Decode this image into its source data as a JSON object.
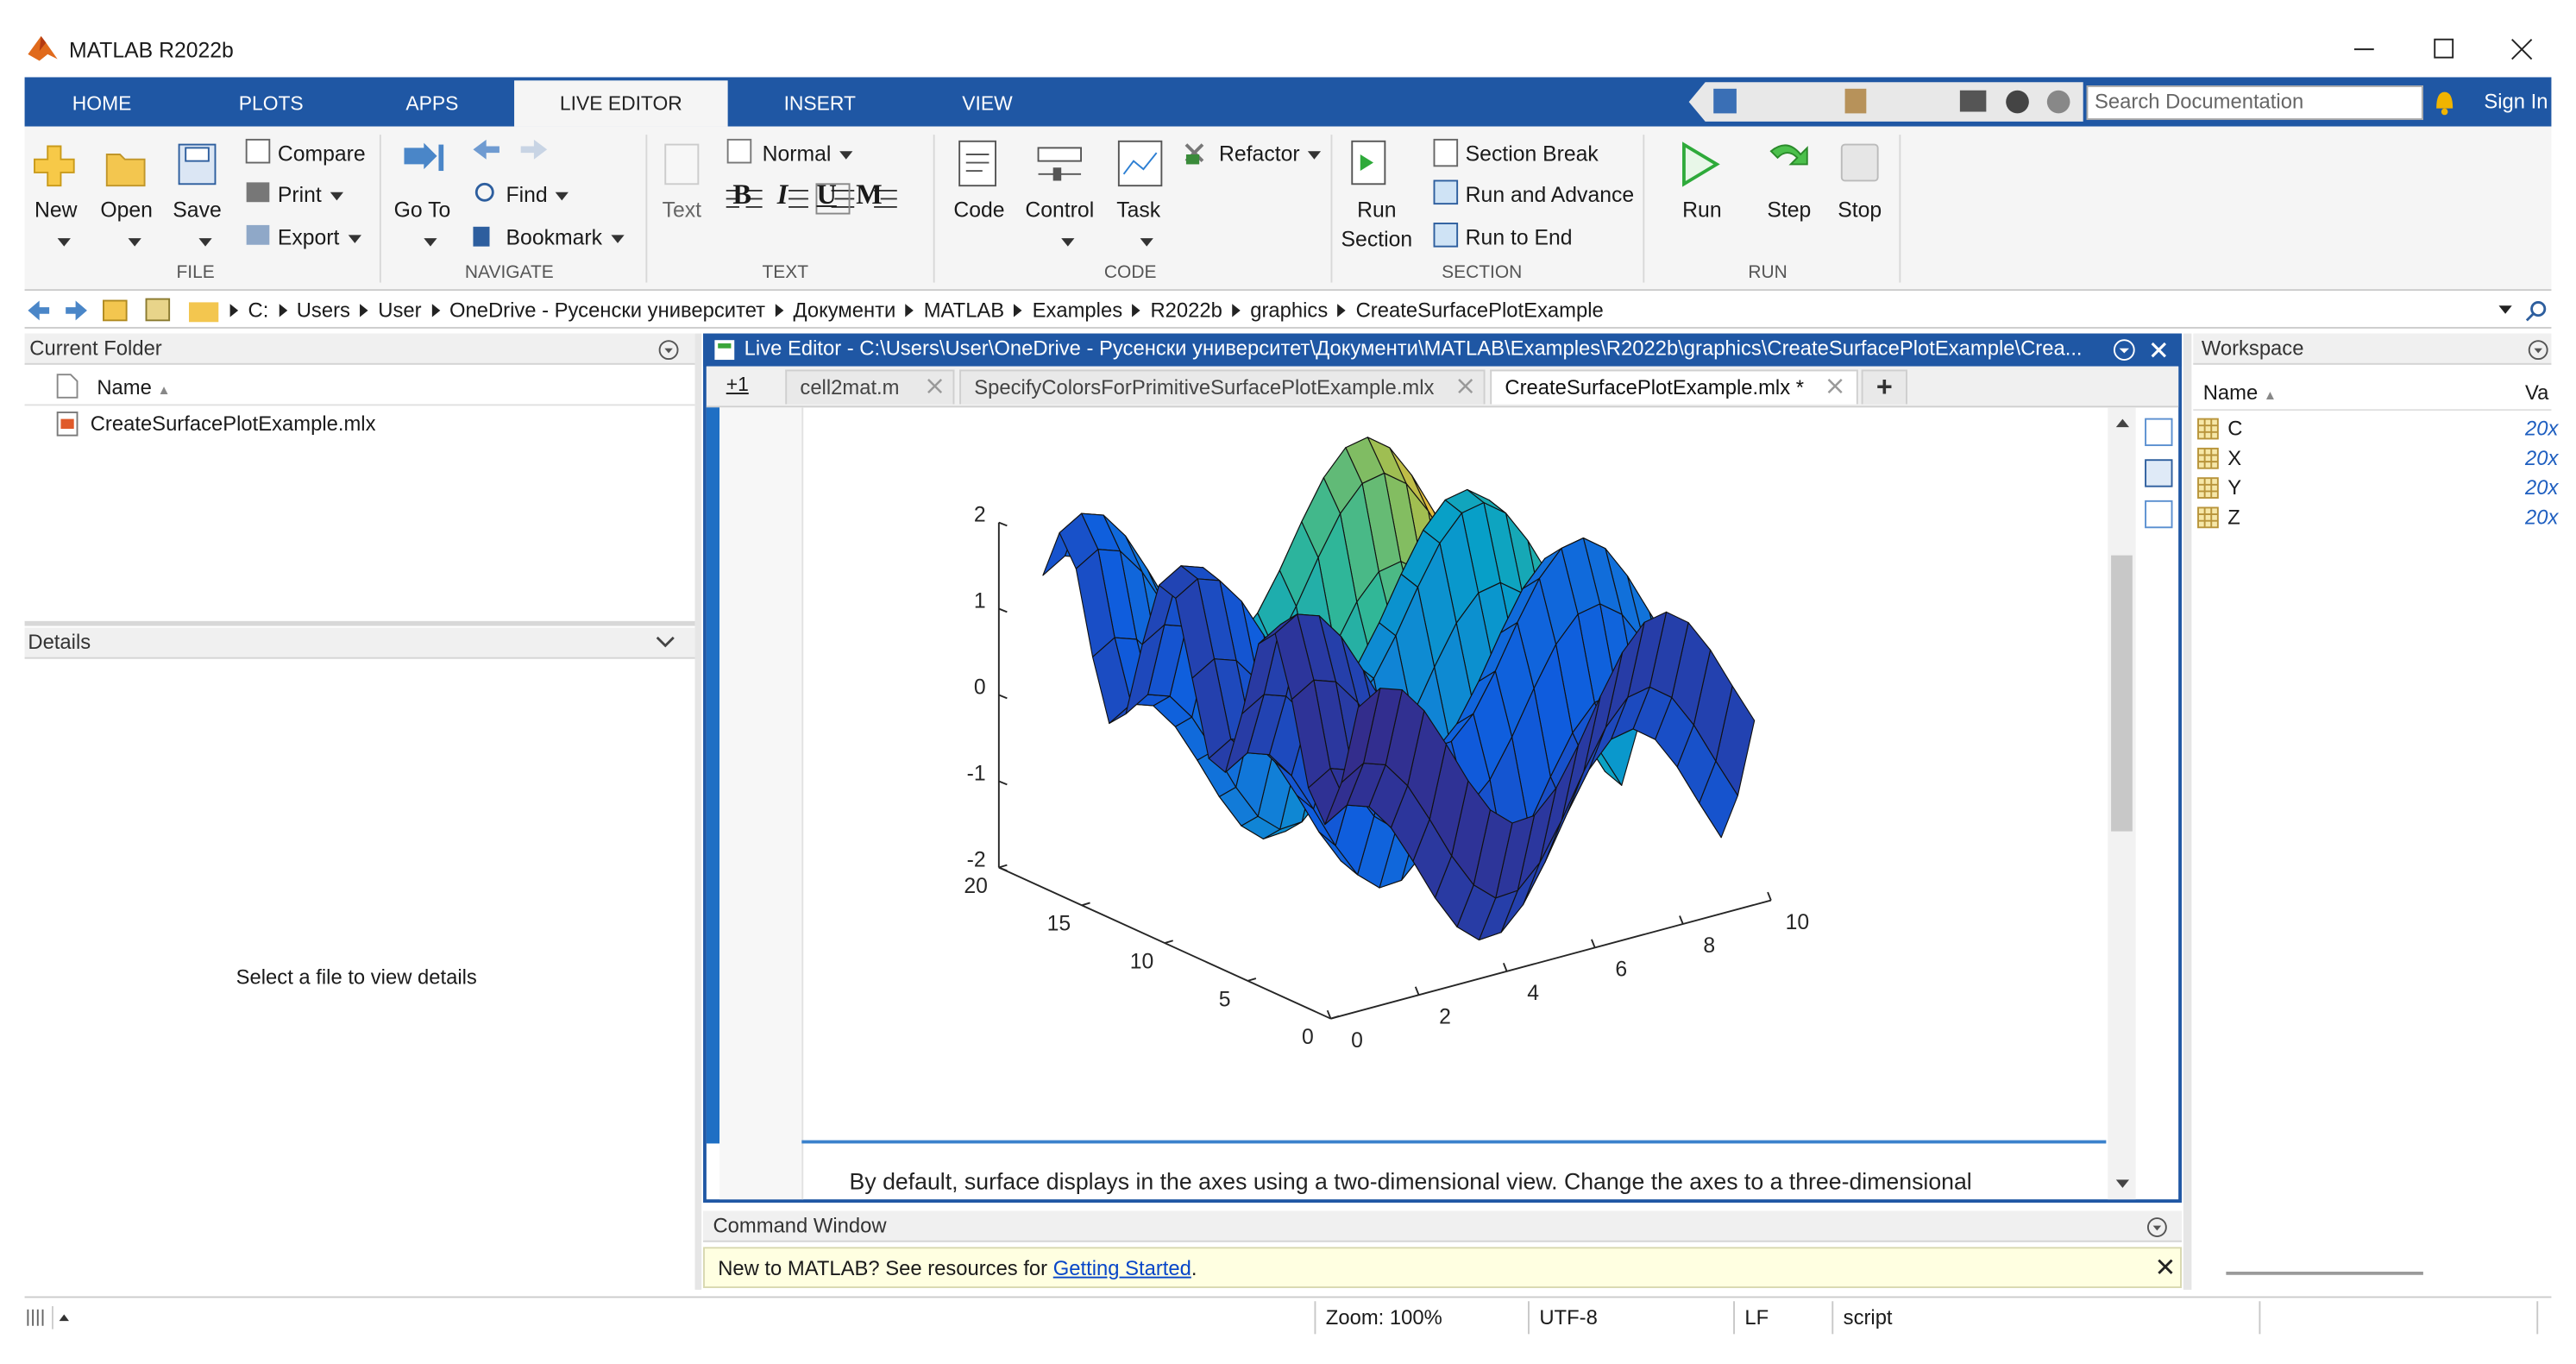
{
  "window": {
    "title": "MATLAB R2022b"
  },
  "tabs": [
    "HOME",
    "PLOTS",
    "APPS",
    "LIVE EDITOR",
    "INSERT",
    "VIEW"
  ],
  "search_placeholder": "Search Documentation",
  "sign_in": "Sign In",
  "ribbon": {
    "groups": [
      "FILE",
      "NAVIGATE",
      "TEXT",
      "CODE",
      "SECTION",
      "RUN"
    ],
    "new": "New",
    "open": "Open",
    "save": "Save",
    "compare": "Compare",
    "print": "Print",
    "export": "Export",
    "go_to": "Go To",
    "find": "Find",
    "bookmark": "Bookmark",
    "text": "Text",
    "style": "Normal",
    "bold": "B",
    "italic": "I",
    "underline": "U",
    "mono": "M",
    "code": "Code",
    "control": "Control",
    "task": "Task",
    "refactor": "Refactor",
    "run_section": [
      "Run",
      "Section"
    ],
    "section_break": "Section Break",
    "run_and_advance": "Run and Advance",
    "run_to_end": "Run to End",
    "run": "Run",
    "step": "Step",
    "stop": "Stop"
  },
  "address": [
    "C:",
    "Users",
    "User",
    "OneDrive - Русенски университет",
    "Документи",
    "MATLAB",
    "Examples",
    "R2022b",
    "graphics",
    "CreateSurfacePlotExample"
  ],
  "current_folder": {
    "title": "Current Folder",
    "column": "Name",
    "files": [
      "CreateSurfacePlotExample.mlx"
    ]
  },
  "details": {
    "title": "Details",
    "empty": "Select a file to view details"
  },
  "editor": {
    "title": "Live Editor - C:\\Users\\User\\OneDrive - Русенски университет\\Документи\\MATLAB\\Examples\\R2022b\\graphics\\CreateSurfacePlotExample\\Crea...",
    "section_badge": "+1",
    "tabs": [
      "cell2mat.m",
      "SpecifyColorsForPrimitiveSurfacePlotExample.mlx",
      "CreateSurfacePlotExample.mlx *"
    ],
    "add_tab": "+",
    "text": "By default, surface displays in the axes using a two-dimensional view. Change the axes to a three-dimensional",
    "figure": {
      "xlim": [
        0,
        10
      ],
      "ylim": [
        0,
        20
      ],
      "zlim": [
        -2,
        2
      ],
      "xticks": [
        0,
        2,
        4,
        6,
        8,
        10
      ],
      "yticks": [
        0,
        5,
        10,
        15,
        20
      ],
      "zticks": [
        -2,
        -1,
        0,
        1,
        2
      ]
    }
  },
  "command_window": {
    "title": "Command Window",
    "notice": "New to MATLAB? See resources for",
    "link": "Getting Started",
    "end": "."
  },
  "workspace": {
    "title": "Workspace",
    "columns": [
      "Name",
      "Va"
    ],
    "variables": [
      {
        "name": "C",
        "value": "20x"
      },
      {
        "name": "X",
        "value": "20x"
      },
      {
        "name": "Y",
        "value": "20x"
      },
      {
        "name": "Z",
        "value": "20x"
      }
    ]
  },
  "status": [
    "Zoom: 100%",
    "UTF-8",
    "LF",
    "script"
  ]
}
